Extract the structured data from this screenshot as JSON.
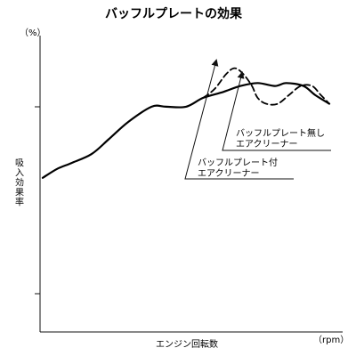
{
  "chart_data": {
    "type": "line",
    "title": "バッフルプレートの効果",
    "xlabel": "エンジン回転数",
    "ylabel": "吸入効果率",
    "y_unit": "（%）",
    "x_unit": "（rpm）",
    "grid": false,
    "x_ticks": [],
    "y_tick_labels": [],
    "series": [
      {
        "style": "solid",
        "color": "#000000",
        "x": [
          0.0,
          0.05,
          0.1,
          0.17,
          0.23,
          0.3,
          0.38,
          0.43,
          0.5,
          0.56,
          0.63,
          0.69,
          0.75,
          0.81,
          0.85,
          0.91,
          0.95,
          1.0
        ],
        "y": [
          0.52,
          0.55,
          0.57,
          0.6,
          0.65,
          0.71,
          0.76,
          0.76,
          0.76,
          0.79,
          0.81,
          0.83,
          0.84,
          0.83,
          0.84,
          0.83,
          0.8,
          0.77
        ]
      },
      {
        "style": "dashed",
        "color": "#000000",
        "x": [
          0.56,
          0.6,
          0.64,
          0.67,
          0.7,
          0.73,
          0.75,
          0.78,
          0.82,
          0.86,
          0.9,
          0.94,
          0.97,
          1.0
        ],
        "y": [
          0.79,
          0.82,
          0.87,
          0.89,
          0.87,
          0.83,
          0.79,
          0.77,
          0.77,
          0.8,
          0.83,
          0.83,
          0.8,
          0.77
        ]
      }
    ],
    "annotations": [
      {
        "lines": [
          "バッフルプレート無し",
          "エアクリーナー"
        ],
        "points_to": "dashed"
      },
      {
        "lines": [
          "バッフルプレート付",
          "エアクリーナー"
        ],
        "points_to": "solid"
      }
    ]
  }
}
